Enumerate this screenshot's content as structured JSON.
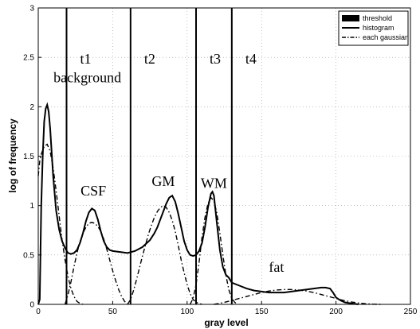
{
  "chart_data": {
    "type": "line",
    "xlabel": "gray level",
    "ylabel": "log of frequency",
    "xlim": [
      0,
      250
    ],
    "ylim": [
      0,
      3
    ],
    "x_ticks": [
      "0",
      "50",
      "100",
      "150",
      "200",
      "250"
    ],
    "y_ticks": [
      "0",
      "0.5",
      "1",
      "1.5",
      "2",
      "2.5",
      "3"
    ],
    "grid": true,
    "legend_position": "top-right",
    "legend": [
      "threshold",
      "histogram",
      "each gaussian"
    ],
    "thresholds": [
      {
        "label": "t1",
        "x": 19
      },
      {
        "label": "t2",
        "x": 62
      },
      {
        "label": "t3",
        "x": 106
      },
      {
        "label": "t4",
        "x": 130
      }
    ],
    "annotations": [
      {
        "text": "background",
        "x": 33,
        "y": 2.25
      },
      {
        "text": "CSF",
        "x": 37,
        "y": 1.1
      },
      {
        "text": "GM",
        "x": 84,
        "y": 1.2
      },
      {
        "text": "WM",
        "x": 118,
        "y": 1.18
      },
      {
        "text": "fat",
        "x": 160,
        "y": 0.33
      }
    ],
    "series": [
      {
        "name": "histogram",
        "style": "solid",
        "x": [
          0,
          1,
          2,
          3,
          4,
          5,
          6,
          7,
          8,
          10,
          12,
          14,
          16,
          18,
          20,
          22,
          24,
          26,
          28,
          30,
          32,
          34,
          36,
          38,
          40,
          42,
          44,
          46,
          48,
          50,
          55,
          60,
          65,
          70,
          75,
          78,
          80,
          82,
          84,
          86,
          88,
          90,
          92,
          94,
          96,
          98,
          100,
          102,
          104,
          106,
          108,
          110,
          112,
          114,
          116,
          117,
          118,
          120,
          122,
          124,
          126,
          128,
          130,
          135,
          140,
          145,
          150,
          155,
          160,
          165,
          170,
          175,
          180,
          185,
          190,
          193,
          196,
          198,
          200,
          203,
          206,
          210,
          215
        ],
        "y": [
          0,
          0.05,
          1.0,
          1.5,
          1.85,
          1.98,
          2.02,
          1.95,
          1.78,
          1.3,
          0.95,
          0.76,
          0.64,
          0.57,
          0.52,
          0.51,
          0.52,
          0.55,
          0.62,
          0.72,
          0.84,
          0.93,
          0.97,
          0.95,
          0.86,
          0.74,
          0.64,
          0.58,
          0.55,
          0.54,
          0.53,
          0.52,
          0.54,
          0.58,
          0.65,
          0.72,
          0.78,
          0.86,
          0.94,
          1.02,
          1.08,
          1.1,
          1.04,
          0.92,
          0.78,
          0.64,
          0.55,
          0.5,
          0.49,
          0.5,
          0.54,
          0.62,
          0.78,
          0.98,
          1.12,
          1.14,
          1.1,
          0.82,
          0.55,
          0.38,
          0.3,
          0.27,
          0.22,
          0.19,
          0.16,
          0.14,
          0.13,
          0.12,
          0.12,
          0.12,
          0.13,
          0.14,
          0.15,
          0.16,
          0.17,
          0.17,
          0.16,
          0.12,
          0.07,
          0.04,
          0.02,
          0.01,
          0.0
        ]
      },
      {
        "name": "each gaussian",
        "style": "dash-dot",
        "x": [
          0,
          1,
          2,
          4,
          6,
          8,
          10,
          12,
          14,
          16,
          18,
          20,
          22,
          24,
          26,
          28,
          30
        ],
        "y": [
          1.3,
          1.45,
          1.52,
          1.6,
          1.62,
          1.55,
          1.38,
          1.15,
          0.9,
          0.65,
          0.45,
          0.28,
          0.16,
          0.08,
          0.03,
          0.01,
          0.0
        ]
      },
      {
        "name": "each gaussian",
        "style": "dash-dot",
        "x": [
          18,
          20,
          22,
          24,
          26,
          28,
          30,
          32,
          34,
          36,
          38,
          40,
          42,
          44,
          46,
          48,
          50,
          52,
          54,
          56,
          58,
          60,
          62
        ],
        "y": [
          0.0,
          0.1,
          0.23,
          0.38,
          0.52,
          0.63,
          0.72,
          0.78,
          0.82,
          0.83,
          0.82,
          0.79,
          0.74,
          0.66,
          0.56,
          0.45,
          0.34,
          0.24,
          0.15,
          0.08,
          0.03,
          0.01,
          0.0
        ]
      },
      {
        "name": "each gaussian",
        "style": "dash-dot",
        "x": [
          60,
          62,
          64,
          66,
          68,
          70,
          72,
          74,
          76,
          78,
          80,
          82,
          84,
          86,
          88,
          90,
          92,
          94,
          96,
          98,
          100,
          102,
          104,
          106,
          108,
          110
        ],
        "y": [
          0.0,
          0.05,
          0.14,
          0.25,
          0.37,
          0.49,
          0.6,
          0.71,
          0.8,
          0.88,
          0.94,
          0.98,
          1.0,
          0.98,
          0.93,
          0.85,
          0.74,
          0.6,
          0.45,
          0.32,
          0.2,
          0.11,
          0.05,
          0.02,
          0.01,
          0.0
        ]
      },
      {
        "name": "each gaussian",
        "style": "dash-dot",
        "x": [
          102,
          104,
          106,
          108,
          110,
          112,
          114,
          116,
          118,
          120,
          122,
          124,
          126,
          128,
          130,
          132,
          134
        ],
        "y": [
          0.0,
          0.06,
          0.2,
          0.42,
          0.68,
          0.88,
          1.02,
          1.08,
          1.05,
          0.92,
          0.72,
          0.5,
          0.3,
          0.15,
          0.06,
          0.02,
          0.0
        ]
      },
      {
        "name": "each gaussian",
        "style": "dash-dot",
        "x": [
          118,
          125,
          130,
          135,
          140,
          145,
          150,
          155,
          160,
          165,
          170,
          175,
          180,
          185,
          190,
          195,
          200,
          205,
          210,
          215,
          220,
          225,
          230
        ],
        "y": [
          0.0,
          0.02,
          0.04,
          0.06,
          0.08,
          0.1,
          0.12,
          0.135,
          0.145,
          0.15,
          0.15,
          0.145,
          0.135,
          0.12,
          0.1,
          0.08,
          0.06,
          0.04,
          0.025,
          0.014,
          0.006,
          0.002,
          0.0
        ]
      }
    ]
  }
}
